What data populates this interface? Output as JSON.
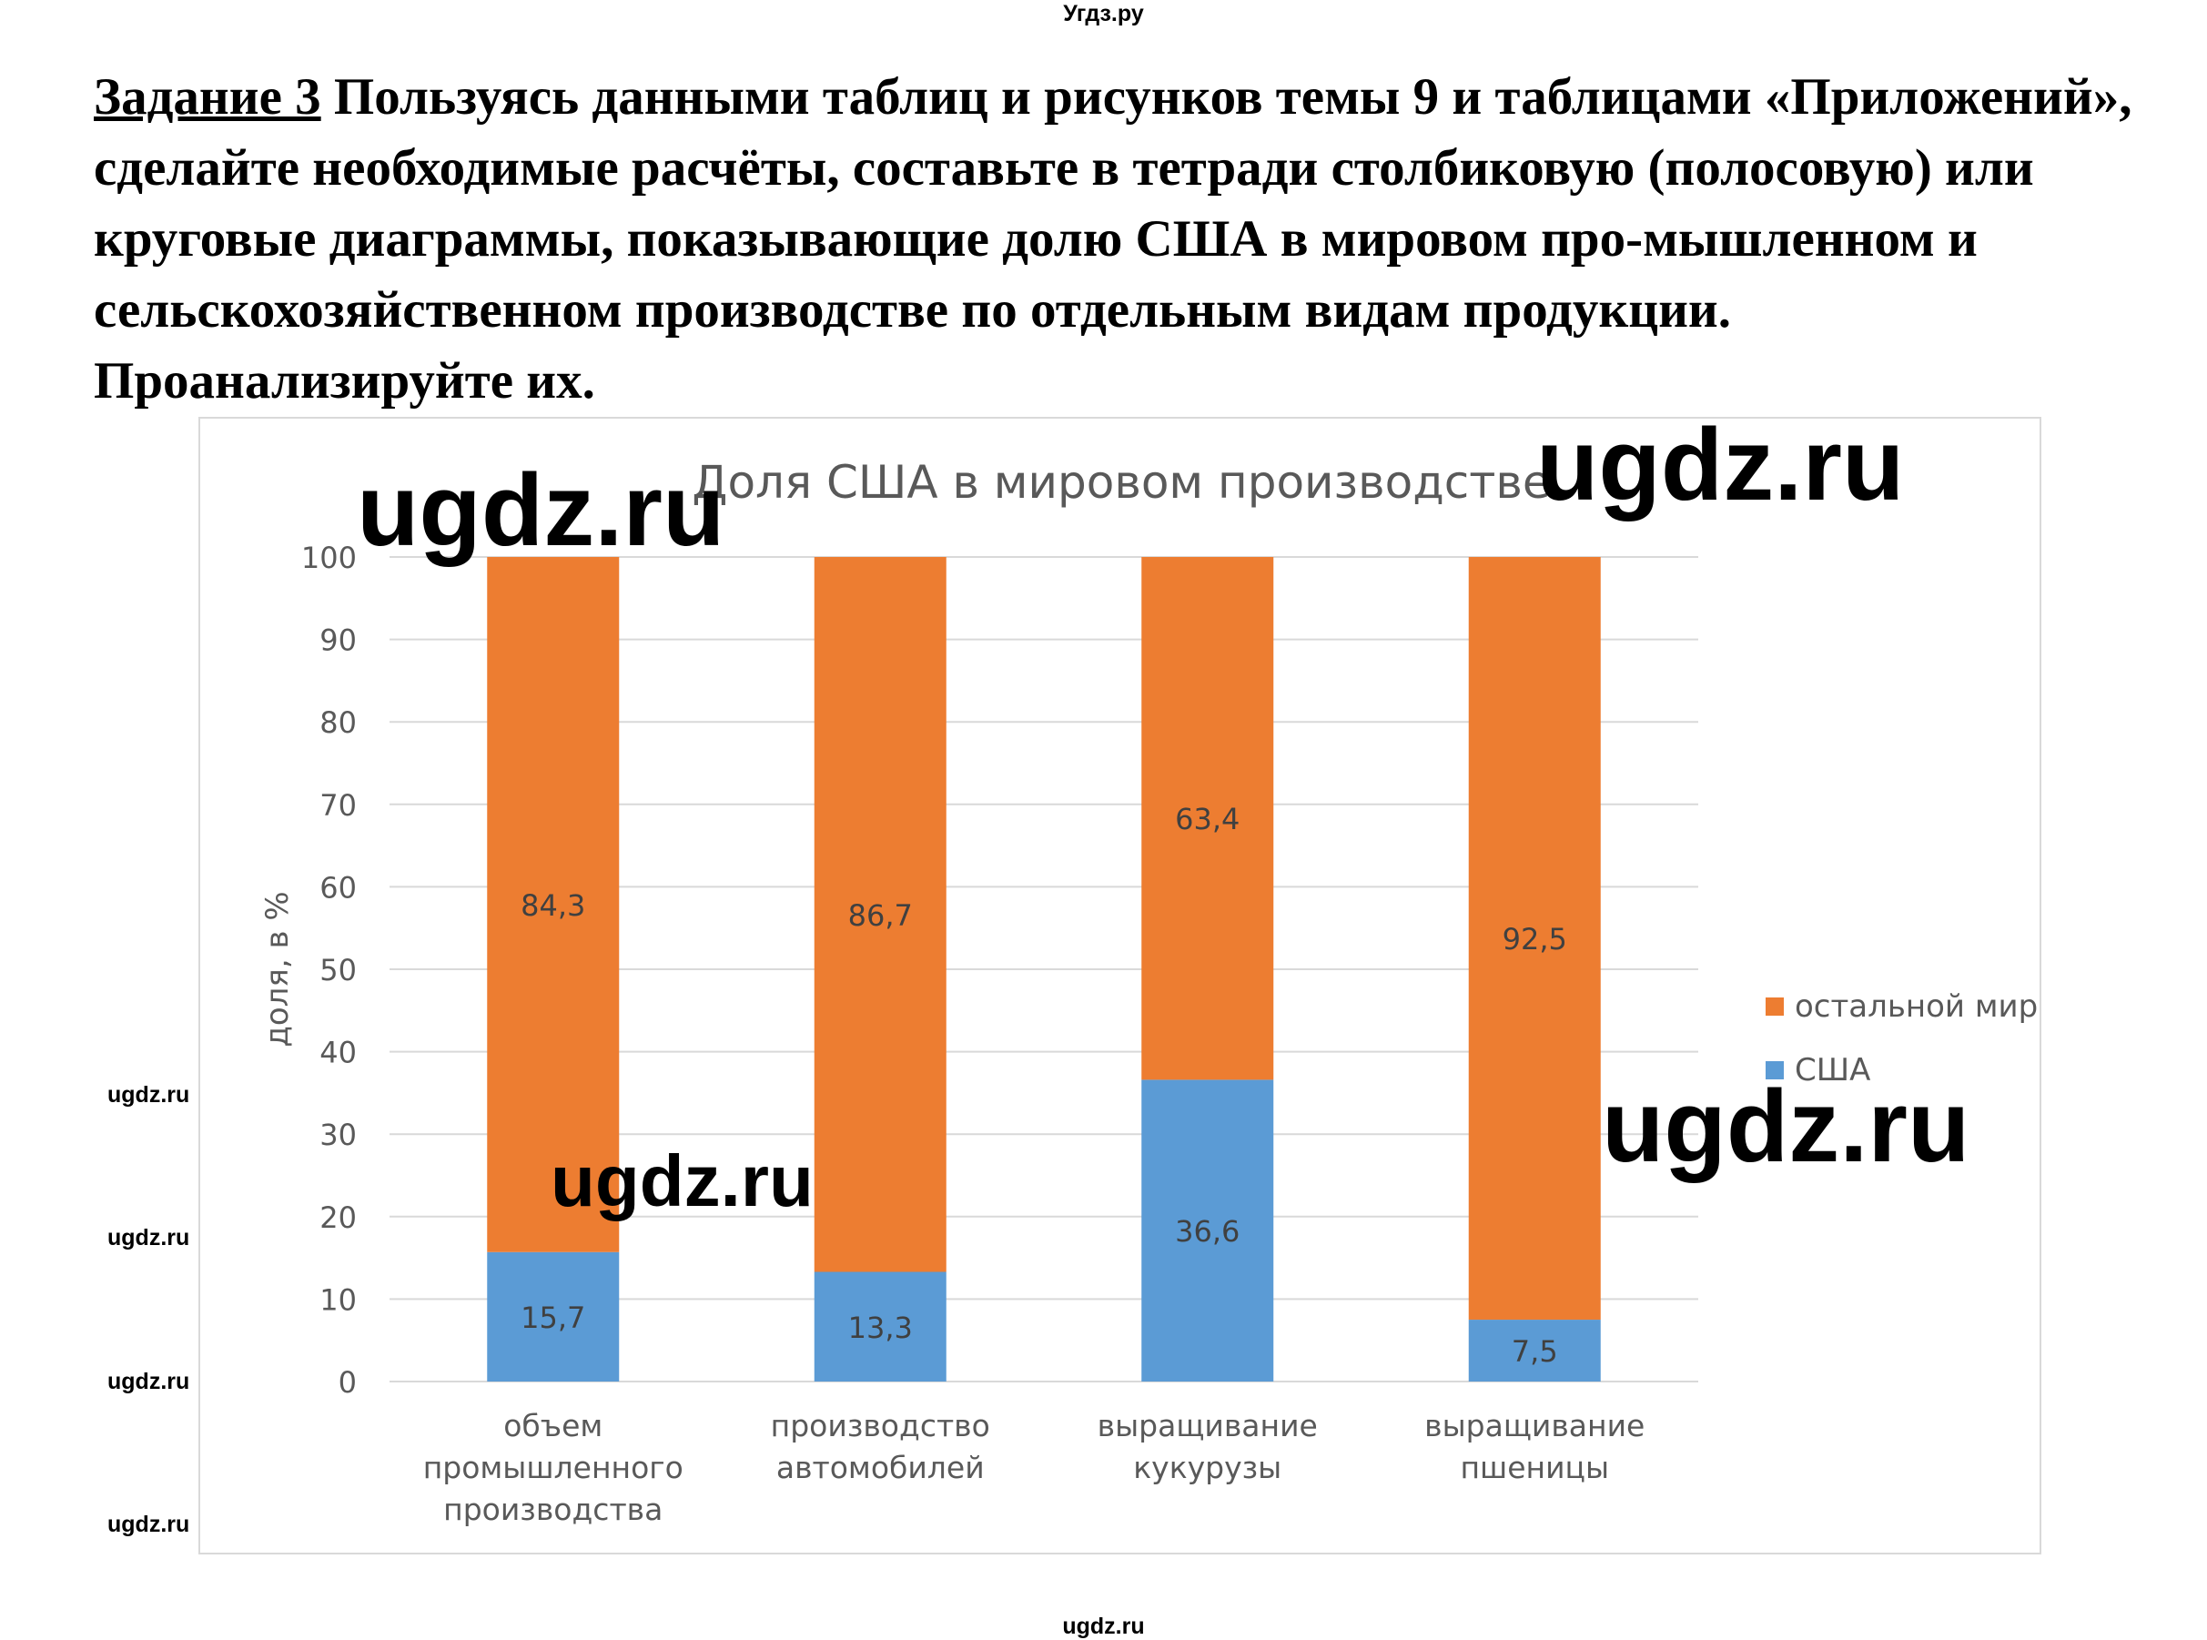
{
  "site": {
    "top": "Угдз.ру",
    "bottom": "ugdz.ru"
  },
  "task": {
    "label": "Задание 3",
    "text": "Пользуясь данными таблиц и рисунков темы 9 и таблицами «Приложений», сделайте необходимые расчёты, составьте в тетради столбиковую (полосовую) или круговые диаграммы, показывающие долю США в мировом про-мышленном и сельскохозяйственном производстве по отдельным видам продукции. Проанализируйте их."
  },
  "watermarks": {
    "big": "ugdz.ru",
    "mid": "ugdz.ru",
    "small": "ugdz.ru"
  },
  "chart_data": {
    "type": "bar",
    "stacked": true,
    "title": "Доля США в мировом производстве",
    "ylabel": "доля, в %",
    "xlabel": "",
    "ylim": [
      0,
      100
    ],
    "yticks": [
      "0",
      "10",
      "20",
      "30",
      "40",
      "50",
      "60",
      "70",
      "80",
      "90",
      "100"
    ],
    "categories": [
      [
        "объем",
        "промышленного",
        "производства"
      ],
      [
        "производство",
        "автомобилей"
      ],
      [
        "выращивание",
        "кукурузы"
      ],
      [
        "выращивание",
        "пшеницы"
      ]
    ],
    "series": [
      {
        "name": "США",
        "values": [
          15.7,
          13.3,
          36.6,
          7.5
        ],
        "labels": [
          "15,7",
          "13,3",
          "36,6",
          "7,5"
        ],
        "color": "#5b9bd5"
      },
      {
        "name": "остальной мир",
        "values": [
          84.3,
          86.7,
          63.4,
          92.5
        ],
        "labels": [
          "84,3",
          "86,7",
          "63,4",
          "92,5"
        ],
        "color": "#ed7d31"
      }
    ],
    "grid": true,
    "legend_position": "right"
  },
  "legend": {
    "first": "остальной мир",
    "second": "США"
  }
}
